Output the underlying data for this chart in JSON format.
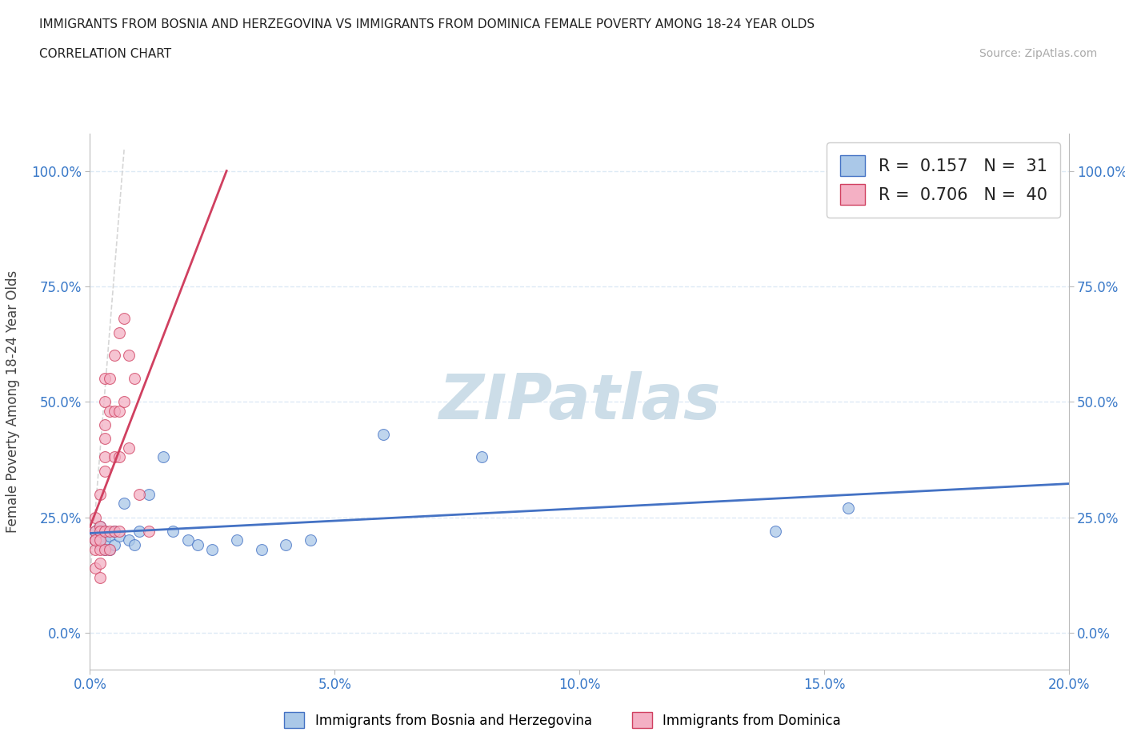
{
  "title_line1": "IMMIGRANTS FROM BOSNIA AND HERZEGOVINA VS IMMIGRANTS FROM DOMINICA FEMALE POVERTY AMONG 18-24 YEAR OLDS",
  "title_line2": "CORRELATION CHART",
  "source_text": "Source: ZipAtlas.com",
  "ylabel": "Female Poverty Among 18-24 Year Olds",
  "xlim": [
    0.0,
    0.2
  ],
  "ylim": [
    -0.08,
    1.08
  ],
  "yticks": [
    0.0,
    0.25,
    0.5,
    0.75,
    1.0
  ],
  "ytick_labels": [
    "0.0%",
    "25.0%",
    "50.0%",
    "75.0%",
    "100.0%"
  ],
  "xticks": [
    0.0,
    0.05,
    0.1,
    0.15,
    0.2
  ],
  "xtick_labels": [
    "0.0%",
    "5.0%",
    "10.0%",
    "15.0%",
    "20.0%"
  ],
  "watermark": "ZIPatlas",
  "R_bosnia": 0.157,
  "N_bosnia": 31,
  "R_dominica": 0.706,
  "N_dominica": 40,
  "color_bosnia": "#aac8e8",
  "color_dominica": "#f4b0c4",
  "line_color_bosnia": "#4472c4",
  "line_color_dominica": "#d04060",
  "background_color": "#ffffff",
  "grid_color": "#ddeaf5",
  "watermark_color": "#ccdde8",
  "bosnia_x": [
    0.001,
    0.001,
    0.002,
    0.002,
    0.002,
    0.003,
    0.003,
    0.003,
    0.004,
    0.004,
    0.005,
    0.005,
    0.006,
    0.007,
    0.008,
    0.009,
    0.01,
    0.012,
    0.015,
    0.017,
    0.02,
    0.022,
    0.025,
    0.03,
    0.035,
    0.04,
    0.045,
    0.06,
    0.08,
    0.14,
    0.155
  ],
  "bosnia_y": [
    0.22,
    0.2,
    0.19,
    0.23,
    0.21,
    0.22,
    0.18,
    0.2,
    0.21,
    0.18,
    0.22,
    0.19,
    0.21,
    0.28,
    0.2,
    0.19,
    0.22,
    0.3,
    0.38,
    0.22,
    0.2,
    0.19,
    0.18,
    0.2,
    0.18,
    0.19,
    0.2,
    0.43,
    0.38,
    0.22,
    0.27
  ],
  "dominica_x": [
    0.001,
    0.001,
    0.001,
    0.001,
    0.001,
    0.001,
    0.002,
    0.002,
    0.002,
    0.002,
    0.002,
    0.002,
    0.002,
    0.003,
    0.003,
    0.003,
    0.003,
    0.003,
    0.003,
    0.003,
    0.003,
    0.004,
    0.004,
    0.004,
    0.004,
    0.005,
    0.005,
    0.005,
    0.005,
    0.006,
    0.006,
    0.006,
    0.006,
    0.007,
    0.007,
    0.008,
    0.008,
    0.009,
    0.01,
    0.012
  ],
  "dominica_y": [
    0.2,
    0.22,
    0.18,
    0.25,
    0.2,
    0.14,
    0.23,
    0.3,
    0.18,
    0.22,
    0.15,
    0.2,
    0.12,
    0.35,
    0.42,
    0.5,
    0.22,
    0.18,
    0.45,
    0.55,
    0.38,
    0.48,
    0.55,
    0.22,
    0.18,
    0.6,
    0.38,
    0.48,
    0.22,
    0.65,
    0.48,
    0.38,
    0.22,
    0.68,
    0.5,
    0.6,
    0.4,
    0.55,
    0.3,
    0.22
  ],
  "dashed_line": [
    [
      0.0,
      0.007
    ],
    [
      0.12,
      1.05
    ]
  ]
}
